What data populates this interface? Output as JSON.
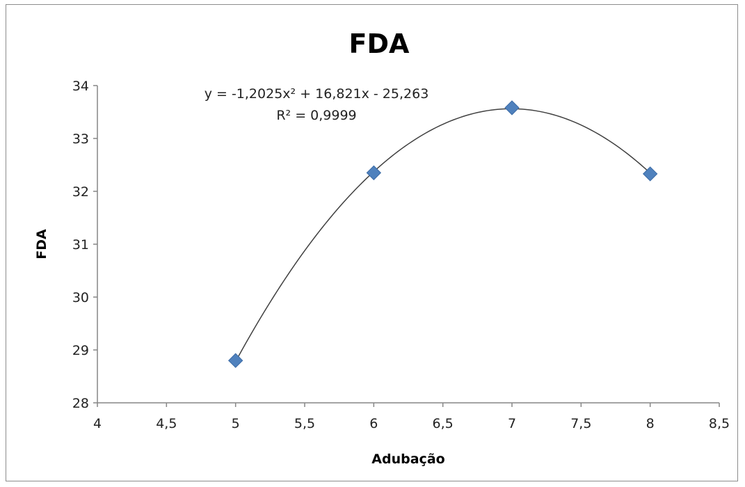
{
  "chart_data": {
    "type": "scatter",
    "title": "FDA",
    "xlabel": "Adubação",
    "ylabel": "FDA",
    "xlim": [
      4,
      8.5
    ],
    "ylim": [
      28,
      34
    ],
    "x_ticks": [
      "4",
      "4,5",
      "5",
      "5,5",
      "6",
      "6,5",
      "7",
      "7,5",
      "8",
      "8,5"
    ],
    "y_ticks": [
      "28",
      "29",
      "30",
      "31",
      "32",
      "33",
      "34"
    ],
    "series": [
      {
        "x": [
          5,
          6,
          7,
          8
        ],
        "y": [
          28.8,
          32.35,
          33.58,
          32.33
        ],
        "color": "#4f81bd",
        "marker": "diamond"
      }
    ],
    "trendline": {
      "type": "polynomial",
      "order": 2,
      "coefficients": [
        -1.2025,
        16.821,
        -25.263
      ],
      "x_range": [
        5,
        8
      ],
      "color": "#404040"
    },
    "annotations": {
      "equation": "y = -1,2025x² + 16,821x - 25,263",
      "r_squared": "R² = 0,9999"
    },
    "grid": false,
    "legend": "none"
  }
}
